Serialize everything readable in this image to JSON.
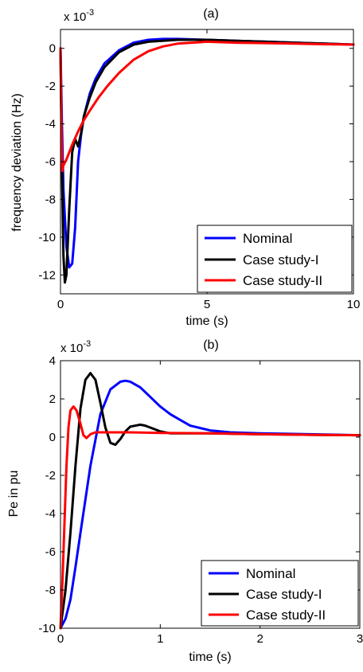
{
  "chart_data": [
    {
      "type": "line",
      "title": "(a)",
      "xlabel": "time (s)",
      "ylabel": "frequency deviation (Hz)",
      "multiplier": "x 10",
      "multiplier_exp": "-3",
      "xlim": [
        0,
        10
      ],
      "ylim": [
        -13,
        1
      ],
      "xticks": [
        0,
        5,
        10
      ],
      "yticks": [
        0,
        -2,
        -4,
        -6,
        -8,
        -10,
        -12
      ],
      "legend_position": "bottom-right",
      "series": [
        {
          "name": "Nominal",
          "color": "#0000ff",
          "x": [
            0,
            0.05,
            0.1,
            0.2,
            0.3,
            0.4,
            0.5,
            0.6,
            0.7,
            0.8,
            1.0,
            1.2,
            1.5,
            2.0,
            2.5,
            3.0,
            3.5,
            4.0,
            5.0,
            6.0,
            7.0,
            8.0,
            9.0,
            10.0
          ],
          "y": [
            0,
            -4.0,
            -7.5,
            -10.5,
            -11.6,
            -11.4,
            -9.5,
            -6.0,
            -4.6,
            -3.6,
            -2.4,
            -1.6,
            -0.8,
            -0.1,
            0.3,
            0.45,
            0.5,
            0.5,
            0.45,
            0.4,
            0.35,
            0.3,
            0.25,
            0.2
          ]
        },
        {
          "name": "Case study-I",
          "color": "#000000",
          "x": [
            0,
            0.05,
            0.1,
            0.15,
            0.2,
            0.3,
            0.4,
            0.5,
            0.6,
            0.7,
            0.8,
            1.0,
            1.2,
            1.5,
            2.0,
            2.5,
            3.0,
            4.0,
            5.0,
            6.0,
            7.0,
            8.0,
            9.0,
            10.0
          ],
          "y": [
            0,
            -6.0,
            -11.0,
            -12.4,
            -12.0,
            -8.5,
            -5.5,
            -4.8,
            -5.2,
            -4.5,
            -3.6,
            -2.6,
            -1.8,
            -1.0,
            -0.2,
            0.2,
            0.35,
            0.45,
            0.45,
            0.4,
            0.35,
            0.3,
            0.25,
            0.2
          ]
        },
        {
          "name": "Case study-II",
          "color": "#ff0000",
          "x": [
            0,
            0.03,
            0.06,
            0.1,
            0.2,
            0.4,
            0.6,
            0.8,
            1.0,
            1.3,
            1.6,
            2.0,
            2.5,
            3.0,
            3.5,
            4.0,
            5.0,
            6.0,
            7.0,
            8.0,
            9.0,
            10.0
          ],
          "y": [
            0,
            -4.0,
            -6.5,
            -6.2,
            -5.9,
            -5.1,
            -4.4,
            -3.8,
            -3.3,
            -2.6,
            -2.0,
            -1.3,
            -0.6,
            -0.15,
            0.1,
            0.25,
            0.35,
            0.3,
            0.28,
            0.25,
            0.22,
            0.2
          ]
        }
      ]
    },
    {
      "type": "line",
      "title": "(b)",
      "xlabel": "time (s)",
      "ylabel": "Pe in pu",
      "multiplier": "x 10",
      "multiplier_exp": "-3",
      "xlim": [
        0,
        3
      ],
      "ylim": [
        -10,
        4
      ],
      "xticks": [
        0,
        1,
        2,
        3
      ],
      "yticks": [
        4,
        2,
        0,
        -2,
        -4,
        -6,
        -8,
        -10
      ],
      "legend_position": "bottom-right",
      "series": [
        {
          "name": "Nominal",
          "color": "#0000ff",
          "x": [
            0,
            0.05,
            0.1,
            0.15,
            0.2,
            0.3,
            0.4,
            0.5,
            0.6,
            0.65,
            0.7,
            0.8,
            0.9,
            1.0,
            1.1,
            1.2,
            1.3,
            1.5,
            1.7,
            2.0,
            2.5,
            3.0
          ],
          "y": [
            -10,
            -9.5,
            -8.5,
            -6.8,
            -5.0,
            -1.5,
            1.2,
            2.5,
            2.9,
            2.95,
            2.9,
            2.6,
            2.1,
            1.6,
            1.2,
            0.9,
            0.6,
            0.35,
            0.25,
            0.2,
            0.15,
            0.1
          ]
        },
        {
          "name": "Case study-I",
          "color": "#000000",
          "x": [
            0,
            0.05,
            0.1,
            0.15,
            0.2,
            0.25,
            0.3,
            0.35,
            0.4,
            0.45,
            0.5,
            0.55,
            0.6,
            0.65,
            0.7,
            0.8,
            0.85,
            0.9,
            1.0,
            1.1,
            1.2,
            1.5,
            2.0,
            2.5,
            3.0
          ],
          "y": [
            -10,
            -8.0,
            -5.0,
            -1.5,
            1.5,
            3.0,
            3.35,
            3.0,
            1.8,
            0.5,
            -0.3,
            -0.4,
            -0.1,
            0.3,
            0.55,
            0.65,
            0.6,
            0.5,
            0.3,
            0.2,
            0.2,
            0.2,
            0.15,
            0.12,
            0.1
          ]
        },
        {
          "name": "Case study-II",
          "color": "#ff0000",
          "x": [
            0,
            0.02,
            0.04,
            0.06,
            0.08,
            0.1,
            0.13,
            0.16,
            0.2,
            0.23,
            0.26,
            0.3,
            0.35,
            0.4,
            0.5,
            0.7,
            1.0,
            1.5,
            2.0,
            2.5,
            3.0
          ],
          "y": [
            -10,
            -7.5,
            -4.5,
            -1.5,
            0.5,
            1.4,
            1.6,
            1.4,
            0.7,
            0.1,
            -0.05,
            0.15,
            0.25,
            0.25,
            0.25,
            0.25,
            0.22,
            0.2,
            0.15,
            0.12,
            0.1
          ]
        }
      ]
    }
  ]
}
